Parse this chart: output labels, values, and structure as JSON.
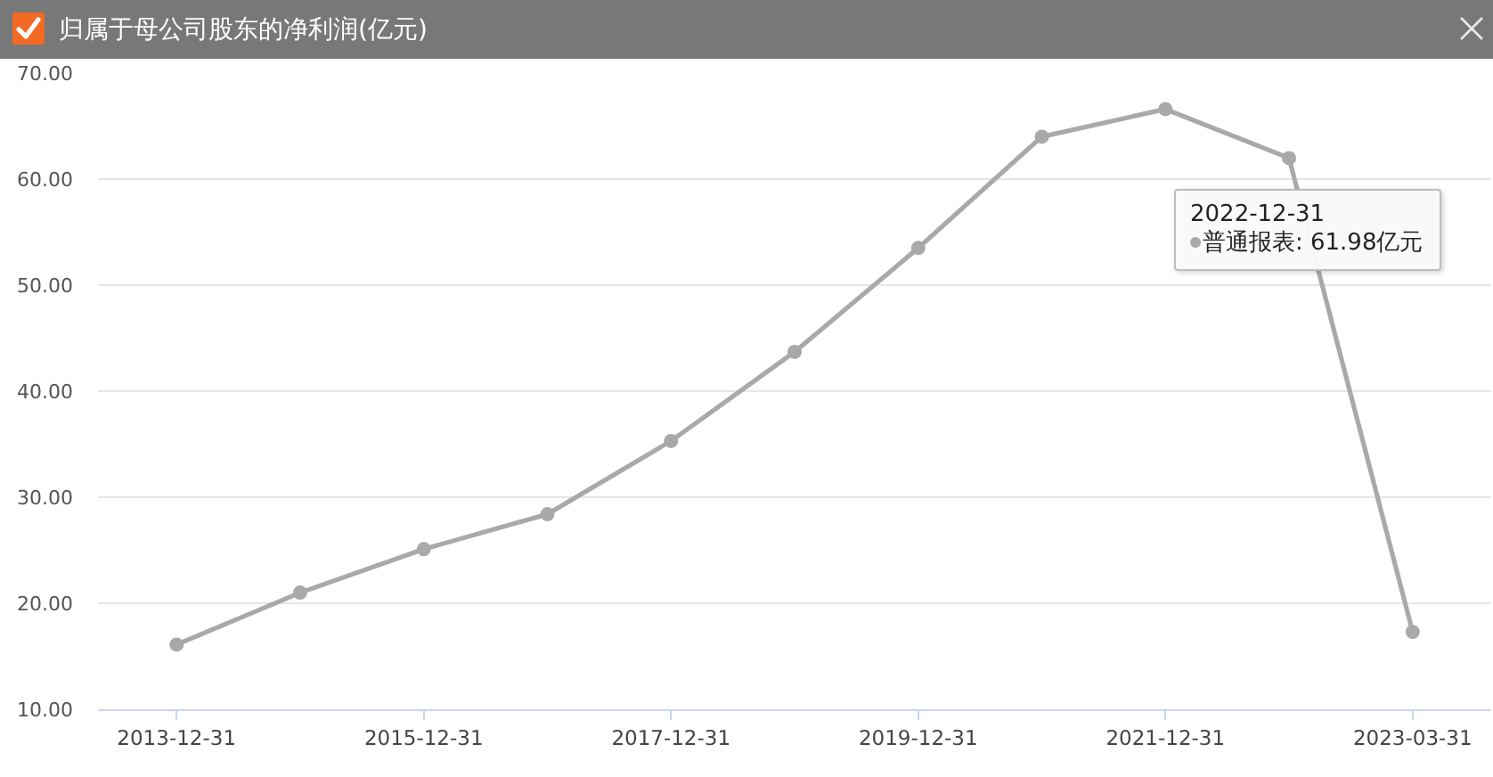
{
  "chart_data": {
    "type": "line",
    "title": "归属于母公司股东的净利润(亿元)",
    "categories": [
      "2013-12-31",
      null,
      "2015-12-31",
      null,
      "2017-12-31",
      null,
      "2019-12-31",
      null,
      "2021-12-31",
      null,
      "2023-03-31"
    ],
    "series": [
      {
        "color": "#a9a9a9",
        "values": [
          16.1,
          21.0,
          25.1,
          28.4,
          35.3,
          43.7,
          53.5,
          64.0,
          66.6,
          61.98,
          17.3
        ]
      }
    ],
    "ylim": [
      10,
      70
    ],
    "yticks": [
      {
        "value": 10,
        "label": "10.00"
      },
      {
        "value": 20,
        "label": "20.00"
      },
      {
        "value": 30,
        "label": "30.00"
      },
      {
        "value": 40,
        "label": "40.00"
      },
      {
        "value": 50,
        "label": "50.00"
      },
      {
        "value": 60,
        "label": "60.00"
      },
      {
        "value": 70,
        "label": "70.00"
      }
    ],
    "grid": "y",
    "legend": false,
    "marker": "circle",
    "line_style": "solid",
    "annotations": [
      "2022-12-31",
      "普通报表: 61.98亿元"
    ]
  }
}
